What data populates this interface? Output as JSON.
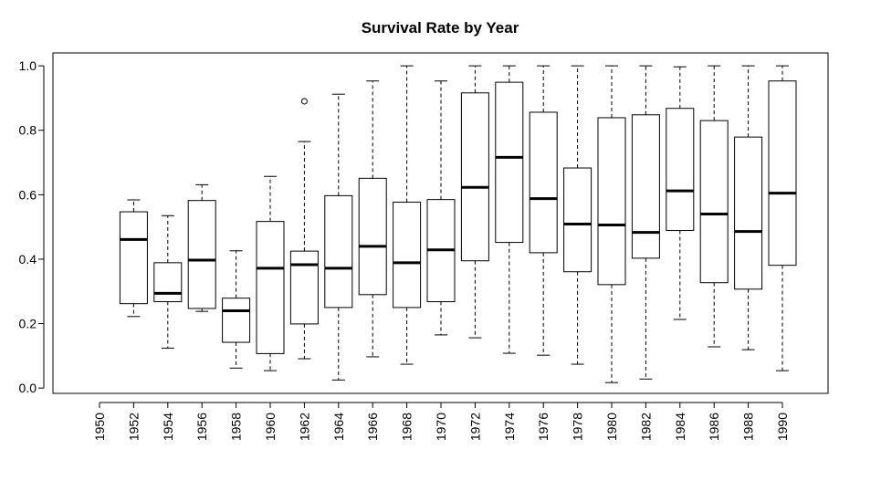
{
  "chart_data": {
    "type": "box",
    "title": "Survival Rate by Year",
    "xlabel": "",
    "ylabel": "",
    "ylim": [
      -0.0165,
      1.04
    ],
    "yticks": [
      "0.0",
      "0.2",
      "0.4",
      "0.6",
      "0.8",
      "1.0"
    ],
    "categories": [
      "1950",
      "1952",
      "1954",
      "1956",
      "1958",
      "1960",
      "1962",
      "1964",
      "1966",
      "1968",
      "1970",
      "1972",
      "1974",
      "1976",
      "1978",
      "1980",
      "1982",
      "1984",
      "1986",
      "1988",
      "1990"
    ],
    "boxes": [
      null,
      {
        "min": 0.222,
        "q1": 0.262,
        "median": 0.461,
        "q3": 0.547,
        "max": 0.584,
        "outliers": []
      },
      {
        "min": 0.124,
        "q1": 0.268,
        "median": 0.294,
        "q3": 0.389,
        "max": 0.535,
        "outliers": []
      },
      {
        "min": 0.238,
        "q1": 0.247,
        "median": 0.397,
        "q3": 0.582,
        "max": 0.631,
        "outliers": []
      },
      {
        "min": 0.062,
        "q1": 0.142,
        "median": 0.24,
        "q3": 0.279,
        "max": 0.426,
        "outliers": []
      },
      {
        "min": 0.054,
        "q1": 0.107,
        "median": 0.372,
        "q3": 0.517,
        "max": 0.657,
        "outliers": []
      },
      {
        "min": 0.091,
        "q1": 0.199,
        "median": 0.383,
        "q3": 0.425,
        "max": 0.765,
        "outliers": [
          0.89
        ]
      },
      {
        "min": 0.025,
        "q1": 0.25,
        "median": 0.372,
        "q3": 0.597,
        "max": 0.912,
        "outliers": []
      },
      {
        "min": 0.097,
        "q1": 0.29,
        "median": 0.44,
        "q3": 0.651,
        "max": 0.953,
        "outliers": []
      },
      {
        "min": 0.074,
        "q1": 0.25,
        "median": 0.389,
        "q3": 0.577,
        "max": 1.0,
        "outliers": []
      },
      {
        "min": 0.165,
        "q1": 0.268,
        "median": 0.429,
        "q3": 0.585,
        "max": 0.953,
        "outliers": []
      },
      {
        "min": 0.156,
        "q1": 0.395,
        "median": 0.623,
        "q3": 0.916,
        "max": 1.0,
        "outliers": []
      },
      {
        "min": 0.108,
        "q1": 0.452,
        "median": 0.716,
        "q3": 0.949,
        "max": 1.0,
        "outliers": []
      },
      {
        "min": 0.102,
        "q1": 0.42,
        "median": 0.588,
        "q3": 0.856,
        "max": 1.0,
        "outliers": []
      },
      {
        "min": 0.074,
        "q1": 0.361,
        "median": 0.509,
        "q3": 0.683,
        "max": 1.0,
        "outliers": []
      },
      {
        "min": 0.017,
        "q1": 0.321,
        "median": 0.506,
        "q3": 0.839,
        "max": 1.0,
        "outliers": []
      },
      {
        "min": 0.028,
        "q1": 0.403,
        "median": 0.483,
        "q3": 0.848,
        "max": 1.0,
        "outliers": []
      },
      {
        "min": 0.213,
        "q1": 0.489,
        "median": 0.612,
        "q3": 0.868,
        "max": 0.997,
        "outliers": []
      },
      {
        "min": 0.128,
        "q1": 0.327,
        "median": 0.54,
        "q3": 0.83,
        "max": 1.0,
        "outliers": []
      },
      {
        "min": 0.119,
        "q1": 0.307,
        "median": 0.486,
        "q3": 0.779,
        "max": 1.0,
        "outliers": []
      },
      {
        "min": 0.054,
        "q1": 0.381,
        "median": 0.605,
        "q3": 0.953,
        "max": 1.0,
        "outliers": []
      }
    ],
    "grid": false,
    "legend": "none",
    "colors": {
      "box_fill": "#ffffff",
      "stroke": "#000000"
    }
  }
}
